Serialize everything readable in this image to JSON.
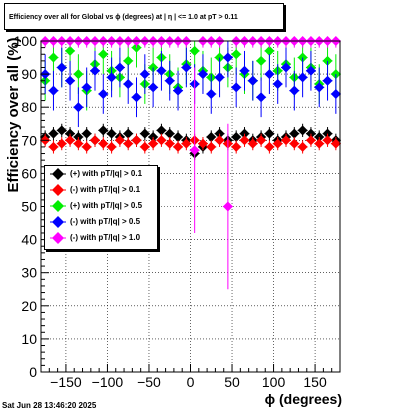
{
  "title": "Efficiency over all for Global vs ϕ (degrees) at | η | <= 1.0 at pT > 0.11",
  "timestamp": "Sat Jun 28 13:46:20 2025",
  "chart_data": {
    "type": "scatter",
    "title": "Efficiency over all for Global vs ϕ (degrees) at | η | <= 1.0 at pT > 0.11",
    "xlabel": "ϕ (degrees)",
    "ylabel": "Efficiency over all (%)",
    "xlim": [
      -180,
      180
    ],
    "ylim": [
      0,
      100
    ],
    "xticks": [
      -150,
      -100,
      -50,
      0,
      50,
      100,
      150
    ],
    "yticks": [
      0,
      10,
      20,
      30,
      40,
      50,
      60,
      70,
      80,
      90,
      100
    ],
    "grid": true,
    "legend_position": "middle-left",
    "series": [
      {
        "name": "(+) with pT/|q| > 0.1",
        "color": "#000000",
        "x": [
          -175,
          -165,
          -155,
          -145,
          -135,
          -125,
          -115,
          -105,
          -95,
          -85,
          -75,
          -65,
          -55,
          -45,
          -35,
          -25,
          -15,
          -5,
          5,
          15,
          25,
          35,
          45,
          55,
          65,
          75,
          85,
          95,
          105,
          115,
          125,
          135,
          145,
          155,
          165,
          175
        ],
        "y": [
          71,
          72,
          73,
          72,
          71,
          72,
          70,
          73,
          72,
          71,
          72,
          70,
          72,
          71,
          73,
          72,
          71,
          70,
          66,
          68,
          71,
          72,
          70,
          71,
          72,
          70,
          71,
          72,
          70,
          71,
          72,
          73,
          72,
          71,
          72,
          70
        ]
      },
      {
        "name": "(-) with pT/|q| > 0.1",
        "color": "#ff0000",
        "x": [
          -175,
          -165,
          -155,
          -145,
          -135,
          -125,
          -115,
          -105,
          -95,
          -85,
          -75,
          -65,
          -55,
          -45,
          -35,
          -25,
          -15,
          -5,
          5,
          15,
          25,
          35,
          45,
          55,
          65,
          75,
          85,
          95,
          105,
          115,
          125,
          135,
          145,
          155,
          165,
          175
        ],
        "y": [
          70,
          68,
          69,
          70,
          69,
          68,
          70,
          69,
          68,
          70,
          69,
          70,
          68,
          69,
          70,
          69,
          68,
          69,
          70,
          69,
          68,
          70,
          69,
          68,
          70,
          69,
          70,
          68,
          69,
          70,
          69,
          68,
          70,
          69,
          70,
          69
        ]
      },
      {
        "name": "(+) with pT/|q| > 0.5",
        "color": "#00ee00",
        "x": [
          -175,
          -165,
          -155,
          -145,
          -135,
          -125,
          -115,
          -105,
          -95,
          -85,
          -75,
          -65,
          -55,
          -45,
          -35,
          -25,
          -15,
          -5,
          5,
          15,
          25,
          35,
          45,
          55,
          65,
          75,
          85,
          95,
          105,
          115,
          125,
          135,
          145,
          155,
          165,
          175
        ],
        "y": [
          88,
          95,
          92,
          97,
          90,
          85,
          93,
          96,
          91,
          89,
          94,
          98,
          87,
          92,
          95,
          90,
          86,
          93,
          97,
          91,
          89,
          95,
          92,
          96,
          90,
          88,
          94,
          97,
          91,
          93,
          89,
          95,
          92,
          87,
          94,
          90
        ]
      },
      {
        "name": "(-) with pT/|q| > 0.5",
        "color": "#0000ff",
        "x": [
          -175,
          -165,
          -155,
          -145,
          -135,
          -125,
          -115,
          -105,
          -95,
          -85,
          -75,
          -65,
          -55,
          -45,
          -35,
          -25,
          -15,
          -5,
          5,
          15,
          25,
          35,
          45,
          55,
          65,
          75,
          85,
          95,
          105,
          115,
          125,
          135,
          145,
          155,
          165,
          175
        ],
        "y": [
          90,
          85,
          92,
          88,
          80,
          86,
          91,
          84,
          89,
          92,
          87,
          83,
          90,
          86,
          91,
          88,
          85,
          92,
          87,
          90,
          84,
          89,
          95,
          86,
          91,
          88,
          83,
          90,
          87,
          92,
          85,
          89,
          91,
          86,
          88,
          84
        ]
      },
      {
        "name": "(-) with pT/|q| > 1.0",
        "color": "#ff00ff",
        "x": [
          -175,
          -165,
          -155,
          -145,
          -135,
          -125,
          -115,
          -105,
          -95,
          -85,
          -75,
          -65,
          -55,
          -45,
          -35,
          -25,
          -15,
          -5,
          5,
          15,
          25,
          35,
          45,
          55,
          65,
          75,
          85,
          95,
          105,
          115,
          125,
          135,
          145,
          155,
          165,
          175
        ],
        "y": [
          100,
          100,
          100,
          100,
          100,
          100,
          100,
          100,
          100,
          100,
          100,
          100,
          100,
          100,
          100,
          100,
          100,
          100,
          67,
          100,
          100,
          100,
          50,
          100,
          100,
          100,
          100,
          100,
          100,
          100,
          100,
          100,
          100,
          100,
          100,
          100
        ]
      }
    ]
  }
}
